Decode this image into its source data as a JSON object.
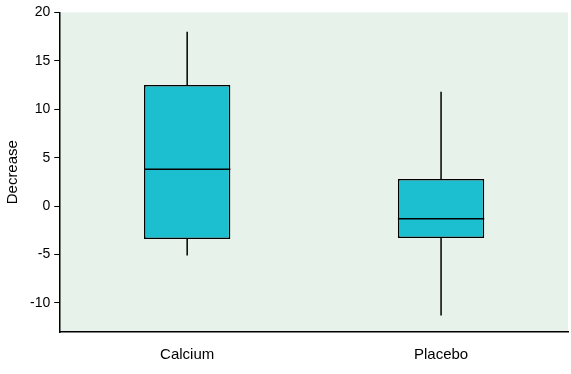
{
  "chart_data": {
    "type": "box",
    "categories": [
      "Calcium",
      "Placebo"
    ],
    "boxes": [
      {
        "min": -5.1,
        "q1": -3.4,
        "median": 3.8,
        "q3": 12.5,
        "max": 18
      },
      {
        "min": -11.3,
        "q1": -3.3,
        "median": -1.3,
        "q3": 2.8,
        "max": 11.8
      }
    ],
    "color": "#1cbfcf",
    "ylabel": "Decrease",
    "ylim": [
      -13,
      20
    ],
    "yticks": [
      -10,
      -5,
      0,
      5,
      10,
      15,
      20
    ],
    "grid": false
  }
}
